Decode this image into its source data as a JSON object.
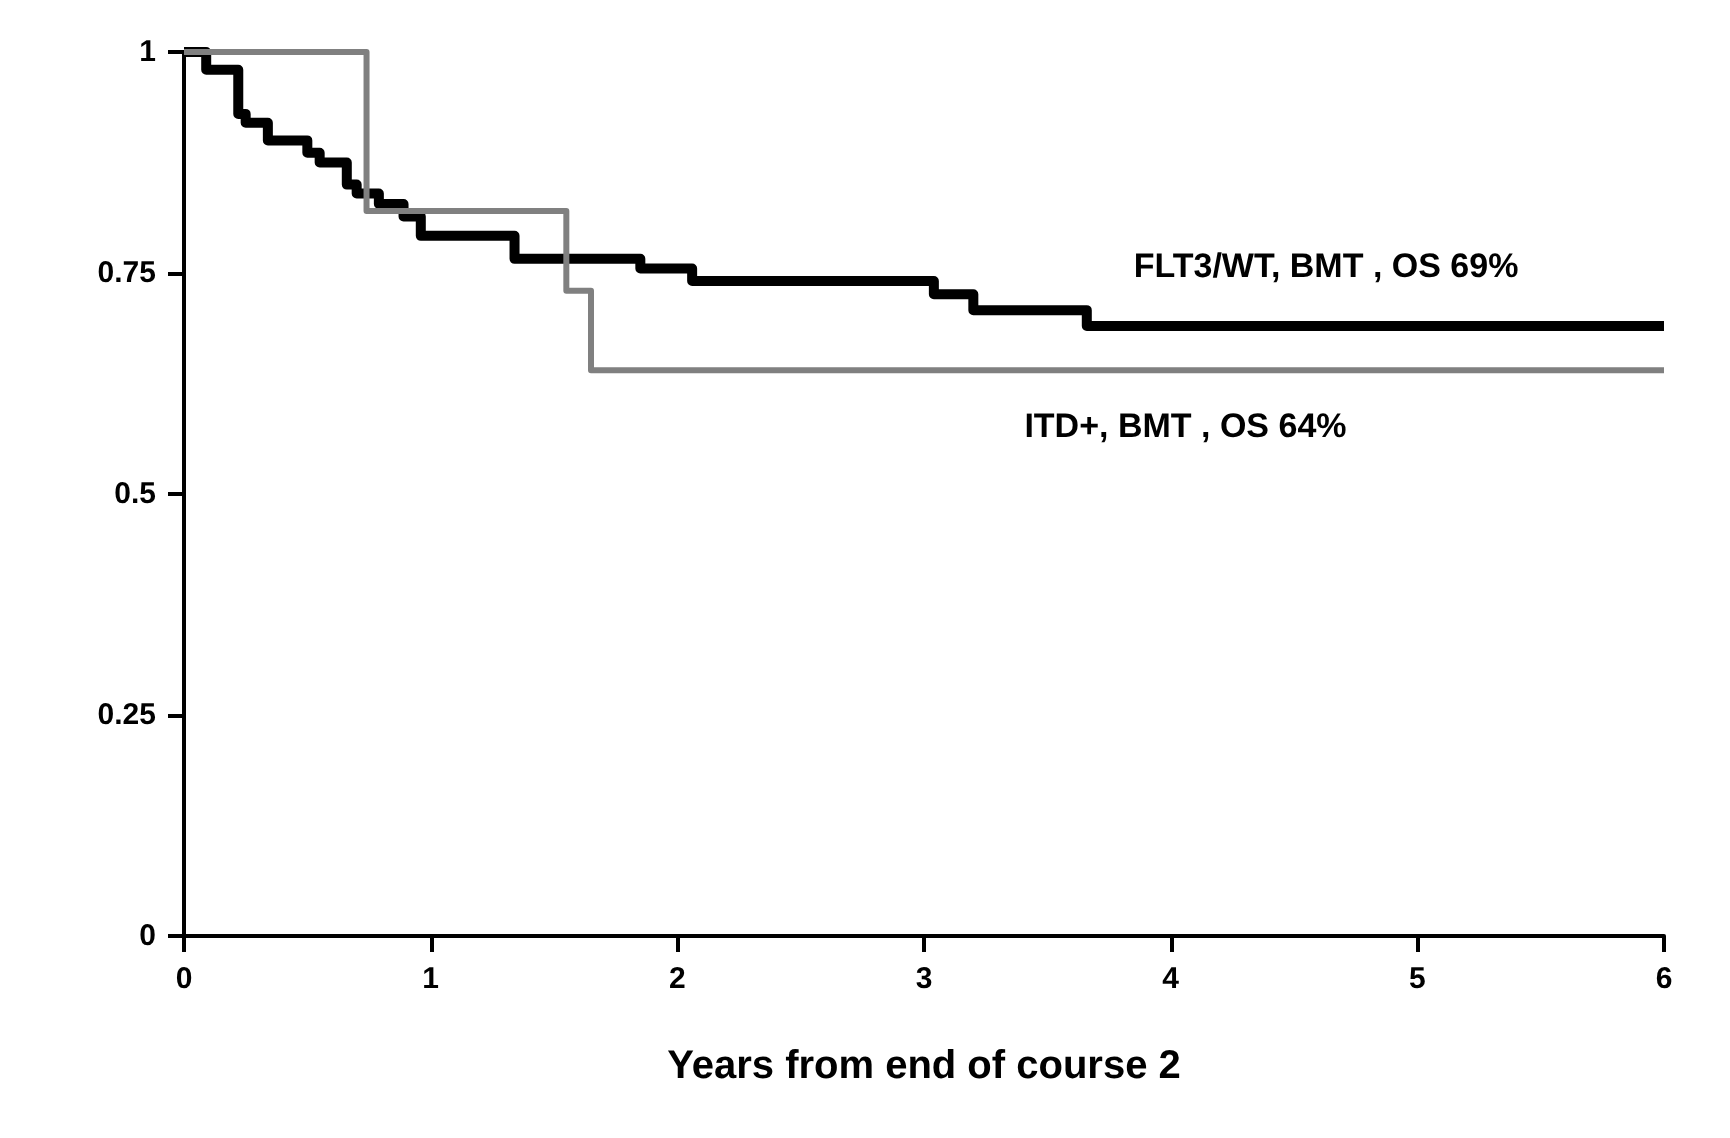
{
  "chart_data": {
    "type": "step",
    "xlabel": "Years from end of course 2",
    "xlim": [
      0,
      6
    ],
    "xticks": [
      0,
      1,
      2,
      3,
      4,
      5,
      6
    ],
    "ylim": [
      0,
      1
    ],
    "yticks": [
      0,
      0.25,
      0.5,
      0.75,
      1
    ],
    "grid": false,
    "legend": false,
    "series": [
      {
        "name": "FLT3/WT, BMT , OS 69%",
        "color": "#000000",
        "x": [
          0,
          0.09,
          0.22,
          0.25,
          0.34,
          0.5,
          0.55,
          0.66,
          0.7,
          0.79,
          0.89,
          0.96,
          1.34,
          1.85,
          2.06,
          3.04,
          3.2,
          3.66,
          6
        ],
        "values": [
          1,
          0.98,
          0.93,
          0.92,
          0.9,
          0.886,
          0.875,
          0.85,
          0.84,
          0.828,
          0.814,
          0.792,
          0.766,
          0.755,
          0.741,
          0.726,
          0.708,
          0.69,
          0.69
        ]
      },
      {
        "name": "ITD+, BMT , OS 64%",
        "color": "#808080",
        "x": [
          0,
          0.74,
          1.55,
          1.65,
          6
        ],
        "values": [
          1,
          0.82,
          0.73,
          0.64,
          0.64
        ]
      }
    ]
  }
}
